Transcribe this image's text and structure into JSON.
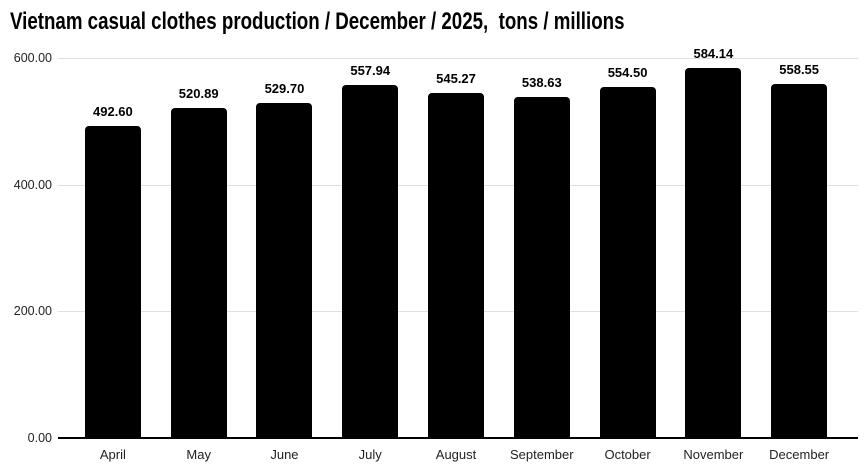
{
  "chart_data": {
    "type": "bar",
    "title": "Vietnam casual clothes production / December / 2025,  tons / millions",
    "categories": [
      "April",
      "May",
      "June",
      "July",
      "August",
      "September",
      "October",
      "November",
      "December"
    ],
    "values": [
      492.6,
      520.89,
      529.7,
      557.94,
      545.27,
      538.63,
      554.5,
      584.14,
      558.55
    ],
    "value_labels": [
      "492.60",
      "520.89",
      "529.70",
      "557.94",
      "545.27",
      "538.63",
      "554.50",
      "584.14",
      "558.55"
    ],
    "y_ticks": [
      {
        "value": 0,
        "label": "0.00"
      },
      {
        "value": 200,
        "label": "200.00"
      },
      {
        "value": 400,
        "label": "400.00"
      },
      {
        "value": 600,
        "label": "600.00"
      }
    ],
    "ylim": [
      0,
      600
    ],
    "xlabel": "",
    "ylabel": "",
    "legend_position": "none",
    "grid": true,
    "colors": {
      "bar": "#000000",
      "grid": "#e0e0e0",
      "axis": "#000000",
      "title": "#000000",
      "tick_label": "#222222",
      "value_label": "#000000",
      "background": "#ffffff"
    }
  }
}
